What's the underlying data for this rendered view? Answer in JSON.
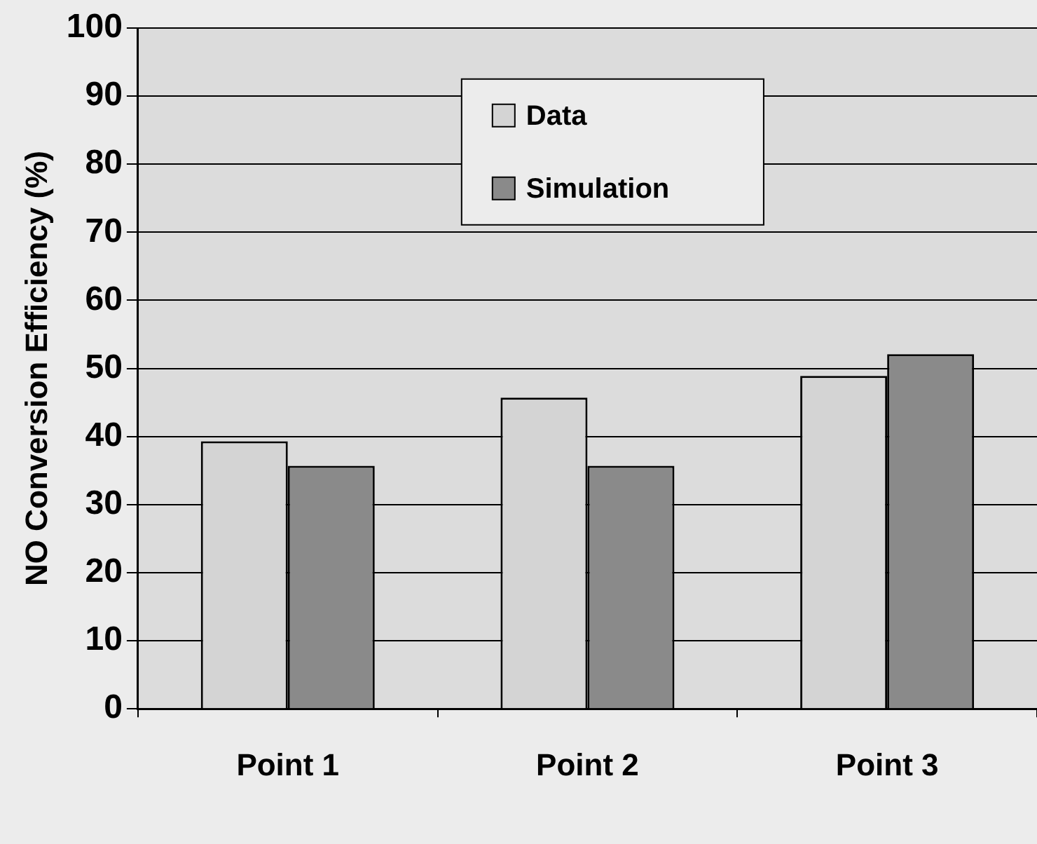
{
  "chart_data": {
    "type": "bar",
    "ylabel": "NO Conversion Efficiency (%)",
    "categories": [
      "Point 1",
      "Point 2",
      "Point 3"
    ],
    "series": [
      {
        "name": "Data",
        "color": "#d4d4d4",
        "values": [
          39.3,
          45.7,
          48.9
        ]
      },
      {
        "name": "Simulation",
        "color": "#8a8a8a",
        "values": [
          35.7,
          35.7,
          52.1
        ]
      }
    ],
    "ylim": [
      0,
      100
    ],
    "yticks": [
      0,
      10,
      20,
      30,
      40,
      50,
      60,
      70,
      80,
      90,
      100
    ],
    "grid": "y",
    "legend": "top"
  }
}
